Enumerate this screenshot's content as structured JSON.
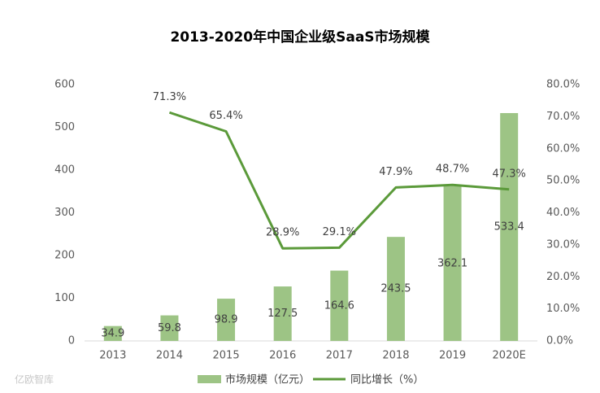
{
  "chart_data": {
    "type": "bar",
    "title": "2013-2020年中国企业级SaaS市场规模",
    "categories": [
      "2013",
      "2014",
      "2015",
      "2016",
      "2017",
      "2018",
      "2019",
      "2020E"
    ],
    "series": [
      {
        "name": "市场规模（亿元）",
        "type": "bar",
        "color": "#9dc485",
        "values": [
          34.9,
          59.8,
          98.9,
          127.5,
          164.6,
          243.5,
          362.1,
          533.4
        ]
      },
      {
        "name": "同比增长（%）",
        "type": "line",
        "axis": "y2",
        "color": "#5b9a3a",
        "values": [
          null,
          71.3,
          65.4,
          28.9,
          29.1,
          47.9,
          48.7,
          47.3
        ],
        "value_labels": [
          null,
          "71.3%",
          "65.4%",
          "28.9%",
          "29.1%",
          "47.9%",
          "48.7%",
          "47.3%"
        ]
      }
    ],
    "ylim": [
      0,
      600
    ],
    "yticks": [
      0,
      100,
      200,
      300,
      400,
      500,
      600
    ],
    "y2lim": [
      0,
      80
    ],
    "y2ticks": [
      {
        "value": 0,
        "label": "0.0%"
      },
      {
        "value": 10,
        "label": "10.0%"
      },
      {
        "value": 20,
        "label": "20.0%"
      },
      {
        "value": 30,
        "label": "30.0%"
      },
      {
        "value": 40,
        "label": "40.0%"
      },
      {
        "value": 50,
        "label": "50.0%"
      },
      {
        "value": 60,
        "label": "60.0%"
      },
      {
        "value": 70,
        "label": "70.0%"
      },
      {
        "value": 80,
        "label": "80.0%"
      }
    ],
    "grid": false,
    "legend": "bottom",
    "watermark": "亿欧智库"
  }
}
